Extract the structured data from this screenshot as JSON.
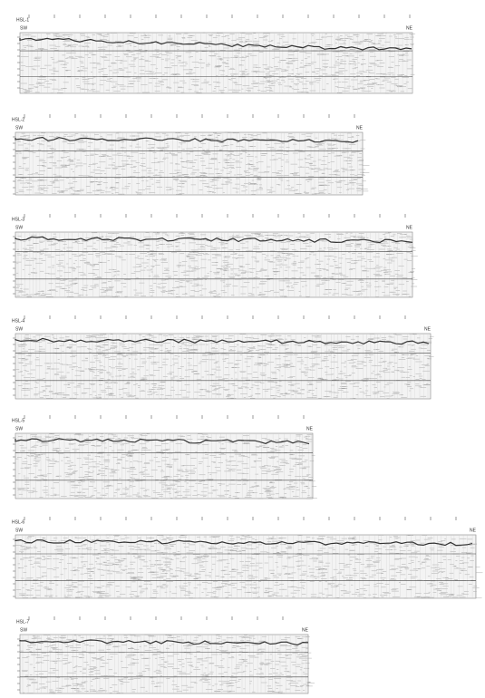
{
  "panels": [
    {
      "label": "HSL-1",
      "left": "SW",
      "right": "NE"
    },
    {
      "label": "HSL-2",
      "left": "SW",
      "right": "NE"
    },
    {
      "label": "HSL-3",
      "left": "SW",
      "right": "NE"
    },
    {
      "label": "HSL-4",
      "left": "SW",
      "right": "NE"
    },
    {
      "label": "HSL-5",
      "left": "SW",
      "right": "NE"
    },
    {
      "label": "HSL-6",
      "left": "SW",
      "right": "NE"
    },
    {
      "label": "HSL-7",
      "left": "SW",
      "right": "NE"
    }
  ]
}
